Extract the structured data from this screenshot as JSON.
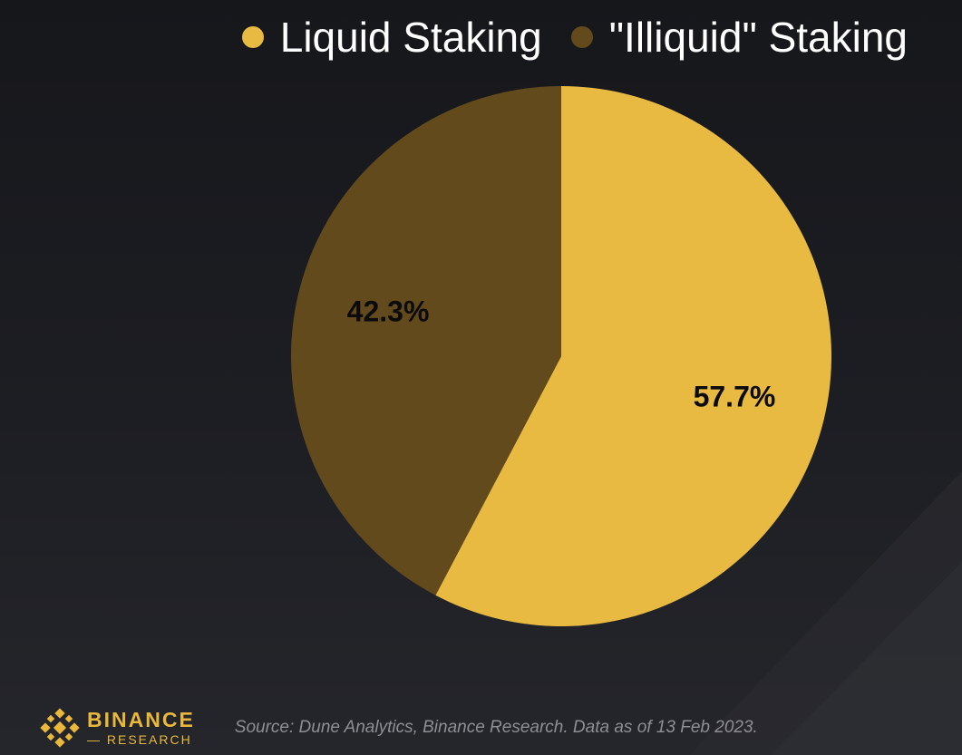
{
  "legend": {
    "items": [
      {
        "label": "Liquid Staking",
        "color": "#e8ba42"
      },
      {
        "label": "\"Illiquid\" Staking",
        "color": "#634a1d"
      }
    ]
  },
  "chart_data": {
    "type": "pie",
    "title": "",
    "legend_position": "top-right",
    "start_angle": "12 o'clock, clockwise",
    "slices": [
      {
        "label": "Liquid Staking",
        "value": 57.7,
        "display": "57.7%",
        "color": "#e8ba42"
      },
      {
        "label": "\"Illiquid\" Staking",
        "value": 42.3,
        "display": "42.3%",
        "color": "#634a1d"
      }
    ]
  },
  "footer": {
    "brand_name": "BINANCE",
    "brand_sub": "RESEARCH",
    "logo_icon": "binance-diamond-logo-icon",
    "source": "Source: Dune Analytics, Binance Research. Data as of 13 Feb 2023."
  }
}
